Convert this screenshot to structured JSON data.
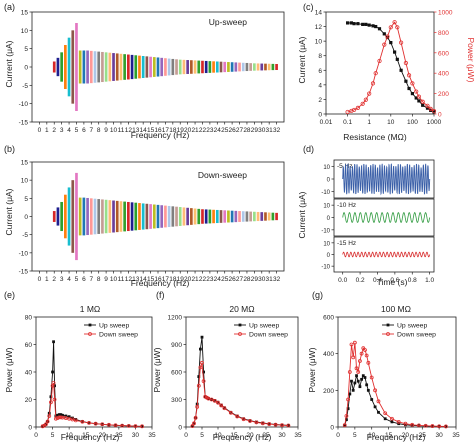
{
  "colors": {
    "axis": "#222222",
    "power_red": "#e03030",
    "current_black": "#111111",
    "up_sweep": "#111111",
    "down_sweep": "#e03030",
    "wave_blue": "#3a5fa8",
    "wave_green": "#2e9a3e",
    "wave_red": "#d83030"
  },
  "chart_data": [
    {
      "id": "a",
      "type": "bar",
      "panel_label": "(a)",
      "annotation": "Up-sweep",
      "xlabel": "Frequency (Hz)",
      "ylabel": "Current (μA)",
      "xlim": [
        -1,
        33
      ],
      "ylim": [
        -15,
        15
      ],
      "xticks": [
        "0",
        "1",
        "2",
        "3",
        "4",
        "5",
        "6",
        "7",
        "8",
        "9",
        "10",
        "11",
        "12",
        "13",
        "14",
        "15",
        "16",
        "17",
        "18",
        "19",
        "20",
        "21",
        "22",
        "23",
        "24",
        "25",
        "26",
        "27",
        "28",
        "29",
        "30",
        "31",
        "32"
      ],
      "yticks": [
        "-15",
        "-10",
        "-5",
        "0",
        "5",
        "10",
        "15"
      ],
      "series": [
        {
          "x": [
            2,
            2.5,
            3,
            3.5,
            4,
            4.5,
            5,
            5.5,
            6,
            6.5,
            7,
            7.5,
            8,
            8.5,
            9,
            9.5,
            10,
            10.5,
            11,
            11.5,
            12,
            12.5,
            13,
            13.5,
            14,
            14.5,
            15,
            15.5,
            16,
            16.5,
            17,
            17.5,
            18,
            18.5,
            19,
            19.5,
            20,
            20.5,
            21,
            21.5,
            22,
            22.5,
            23,
            23.5,
            24,
            24.5,
            25,
            25.5,
            26,
            26.5,
            27,
            27.5,
            28,
            28.5,
            29,
            29.5,
            30,
            30.5,
            31,
            31.5,
            32
          ],
          "values": [
            1.5,
            2.5,
            4,
            6,
            8,
            10,
            12,
            4.5,
            4.5,
            4.5,
            4.4,
            4.3,
            4.2,
            4.1,
            4.0,
            3.9,
            3.8,
            3.7,
            3.6,
            3.5,
            3.4,
            3.3,
            3.2,
            3.1,
            3.0,
            2.9,
            2.8,
            2.7,
            2.6,
            2.5,
            2.4,
            2.3,
            2.2,
            2.1,
            2.0,
            1.95,
            1.9,
            1.85,
            1.8,
            1.75,
            1.7,
            1.65,
            1.6,
            1.55,
            1.5,
            1.45,
            1.4,
            1.35,
            1.3,
            1.25,
            1.2,
            1.15,
            1.1,
            1.05,
            1.0,
            0.97,
            0.94,
            0.91,
            0.88,
            0.85,
            0.82
          ]
        }
      ]
    },
    {
      "id": "b",
      "type": "bar",
      "panel_label": "(b)",
      "annotation": "Down-sweep",
      "xlabel": "Frequency (Hz)",
      "ylabel": "Current (μA)",
      "xlim": [
        -1,
        33
      ],
      "ylim": [
        -15,
        15
      ],
      "xticks": [
        "0",
        "1",
        "2",
        "3",
        "4",
        "5",
        "6",
        "7",
        "8",
        "9",
        "10",
        "11",
        "12",
        "13",
        "14",
        "15",
        "16",
        "17",
        "18",
        "19",
        "20",
        "21",
        "22",
        "23",
        "24",
        "25",
        "26",
        "27",
        "28",
        "29",
        "30",
        "31",
        "32"
      ],
      "yticks": [
        "-15",
        "-10",
        "-5",
        "0",
        "5",
        "10",
        "15"
      ],
      "series": [
        {
          "x": [
            2,
            2.5,
            3,
            3.5,
            4,
            4.5,
            5,
            5.5,
            6,
            6.5,
            7,
            7.5,
            8,
            8.5,
            9,
            9.5,
            10,
            10.5,
            11,
            11.5,
            12,
            12.5,
            13,
            13.5,
            14,
            14.5,
            15,
            15.5,
            16,
            16.5,
            17,
            17.5,
            18,
            18.5,
            19,
            19.5,
            20,
            20.5,
            21,
            21.5,
            22,
            22.5,
            23,
            23.5,
            24,
            24.5,
            25,
            25.5,
            26,
            26.5,
            27,
            27.5,
            28,
            28.5,
            29,
            29.5,
            30,
            30.5,
            31,
            31.5,
            32
          ],
          "values": [
            1.5,
            2.5,
            4,
            6,
            8,
            10,
            12,
            5.2,
            5.2,
            5.1,
            5.0,
            4.9,
            4.8,
            4.7,
            4.6,
            4.5,
            4.4,
            4.3,
            4.2,
            4.1,
            4.0,
            3.9,
            3.8,
            3.7,
            3.6,
            3.5,
            3.4,
            3.3,
            3.2,
            3.1,
            3.0,
            2.9,
            2.8,
            2.7,
            2.6,
            2.5,
            2.4,
            2.3,
            2.2,
            2.1,
            2.0,
            1.95,
            1.9,
            1.85,
            1.8,
            1.75,
            1.7,
            1.65,
            1.6,
            1.55,
            1.5,
            1.45,
            1.4,
            1.35,
            1.3,
            1.25,
            1.2,
            1.15,
            1.1,
            1.05,
            1.0
          ]
        }
      ]
    },
    {
      "id": "c",
      "type": "line",
      "panel_label": "(c)",
      "xlabel": "Resistance (MΩ)",
      "ylabel": "Current (μA)",
      "ylabel_right": "Power (μW)",
      "xscale": "log",
      "xlim": [
        0.01,
        1000
      ],
      "ylim": [
        0,
        14
      ],
      "ylim_right": [
        0,
        1000
      ],
      "xticks": [
        "0.01",
        "0.1",
        "1",
        "10",
        "100",
        "1000"
      ],
      "yticks": [
        "0",
        "2",
        "4",
        "6",
        "8",
        "10",
        "12",
        "14"
      ],
      "yticks_right": [
        "0",
        "200",
        "400",
        "600",
        "800",
        "1000"
      ],
      "series": [
        {
          "name": "Current",
          "axis": "left",
          "marker": "square",
          "x": [
            0.1,
            0.15,
            0.2,
            0.3,
            0.5,
            0.7,
            1,
            1.5,
            2,
            3,
            5,
            7,
            10,
            15,
            20,
            30,
            50,
            70,
            100,
            150,
            200,
            300,
            500,
            700,
            1000
          ],
          "values": [
            12.5,
            12.5,
            12.4,
            12.4,
            12.3,
            12.3,
            12.2,
            12.1,
            12.0,
            11.7,
            11.0,
            10.5,
            9.8,
            8.5,
            7.5,
            6.0,
            4.5,
            3.5,
            2.8,
            2.2,
            1.8,
            1.2,
            0.8,
            0.5,
            0.3
          ]
        },
        {
          "name": "Power",
          "axis": "right",
          "marker": "circle",
          "x": [
            0.1,
            0.15,
            0.2,
            0.3,
            0.5,
            0.7,
            1,
            1.5,
            2,
            3,
            5,
            7,
            10,
            15,
            20,
            30,
            50,
            70,
            100,
            150,
            200,
            300,
            500,
            700,
            1000
          ],
          "values": [
            20,
            30,
            40,
            60,
            100,
            140,
            200,
            300,
            400,
            520,
            680,
            760,
            850,
            900,
            850,
            700,
            500,
            380,
            300,
            220,
            170,
            120,
            80,
            50,
            30
          ]
        }
      ]
    },
    {
      "id": "d",
      "type": "line",
      "panel_label": "(d)",
      "xlabel": "Time (s)",
      "ylabel": "Current (μA)",
      "xlim": [
        -0.1,
        1.05
      ],
      "xticks": [
        "0.0",
        "0.2",
        "0.4",
        "0.6",
        "0.8",
        "1.0"
      ],
      "subplots": [
        {
          "label": "5 Hz",
          "yticks": [
            "10",
            "0",
            "-10"
          ],
          "ylim": [
            -15,
            15
          ],
          "frequency": 5,
          "amplitude": 12,
          "pattern": "burst"
        },
        {
          "label": "10 Hz",
          "yticks": [
            "10",
            "0",
            "-10"
          ],
          "ylim": [
            -15,
            15
          ],
          "frequency": 10,
          "amplitude": 4,
          "pattern": "sine"
        },
        {
          "label": "15 Hz",
          "yticks": [
            "10",
            "0",
            "-10"
          ],
          "ylim": [
            -15,
            15
          ],
          "frequency": 15,
          "amplitude": 2,
          "pattern": "sine"
        }
      ]
    },
    {
      "id": "e",
      "type": "line",
      "panel_label": "(e)",
      "title": "1 MΩ",
      "xlabel": "Frequency (Hz)",
      "ylabel": "Power (μW)",
      "xlim": [
        0,
        35
      ],
      "ylim": [
        0,
        80
      ],
      "xticks": [
        "0",
        "5",
        "10",
        "15",
        "20",
        "25",
        "30",
        "35"
      ],
      "yticks": [
        "0",
        "20",
        "40",
        "60",
        "80"
      ],
      "legend": [
        "Up sweep",
        "Down sweep"
      ],
      "series": [
        {
          "name": "Up sweep",
          "marker": "square",
          "x": [
            2,
            2.5,
            3,
            3.5,
            4,
            4.5,
            5,
            5.3,
            5.6,
            6,
            6.5,
            7,
            7.5,
            8,
            9,
            10,
            11,
            12,
            14,
            16,
            18,
            20,
            22,
            24,
            26,
            28,
            30,
            32
          ],
          "values": [
            0.5,
            1,
            2,
            4,
            10,
            22,
            40,
            62,
            30,
            8,
            8.5,
            9,
            9,
            8.5,
            8,
            7.5,
            6.5,
            5.5,
            4,
            3,
            2.5,
            2,
            1.5,
            1.2,
            1,
            0.8,
            0.6,
            0.5
          ]
        },
        {
          "name": "Down sweep",
          "marker": "circle",
          "x": [
            2,
            2.5,
            3,
            3.5,
            4,
            4.5,
            5,
            5.3,
            5.6,
            6,
            6.5,
            7,
            7.5,
            8,
            9,
            10,
            11,
            12,
            14,
            16,
            18,
            20,
            22,
            24,
            26,
            28,
            30,
            32
          ],
          "values": [
            0.5,
            1,
            2,
            4,
            8,
            18,
            30,
            32,
            20,
            6,
            6.5,
            7,
            7,
            6.8,
            6.5,
            6,
            5.5,
            4.8,
            3.8,
            3,
            2.4,
            2,
            1.6,
            1.3,
            1,
            0.8,
            0.6,
            0.5
          ]
        }
      ]
    },
    {
      "id": "f",
      "type": "line",
      "panel_label": "(f)",
      "title": "20 MΩ",
      "xlabel": "Frequency (Hz)",
      "ylabel": "Power (μW)",
      "xlim": [
        0,
        35
      ],
      "ylim": [
        0,
        1200
      ],
      "xticks": [
        "0",
        "5",
        "10",
        "15",
        "20",
        "25",
        "30",
        "35"
      ],
      "yticks": [
        "0",
        "300",
        "600",
        "900",
        "1200"
      ],
      "legend": [
        "Up sweep",
        "Down sweep"
      ],
      "series": [
        {
          "name": "Up sweep",
          "marker": "square",
          "x": [
            2,
            2.5,
            3,
            3.5,
            4,
            4.5,
            5,
            5.5,
            6,
            6.5,
            7,
            8,
            9,
            10,
            11,
            12,
            14,
            16,
            18,
            20,
            22,
            24,
            26,
            28,
            30,
            32
          ],
          "values": [
            10,
            40,
            100,
            250,
            550,
            850,
            980,
            600,
            330,
            320,
            310,
            300,
            290,
            270,
            240,
            210,
            160,
            120,
            90,
            70,
            55,
            45,
            35,
            28,
            22,
            18
          ]
        },
        {
          "name": "Down sweep",
          "marker": "circle",
          "x": [
            2,
            2.5,
            3,
            3.5,
            4,
            4.5,
            5,
            5.5,
            6,
            6.5,
            7,
            8,
            9,
            10,
            11,
            12,
            14,
            16,
            18,
            20,
            22,
            24,
            26,
            28,
            30,
            32
          ],
          "values": [
            10,
            40,
            100,
            220,
            450,
            650,
            700,
            500,
            330,
            320,
            310,
            300,
            285,
            265,
            235,
            205,
            155,
            115,
            85,
            65,
            50,
            40,
            32,
            25,
            20,
            16
          ]
        }
      ]
    },
    {
      "id": "g",
      "type": "line",
      "panel_label": "(g)",
      "title": "100 MΩ",
      "xlabel": "Frequency (Hz)",
      "ylabel": "Power (μW)",
      "xlim": [
        0,
        35
      ],
      "ylim": [
        0,
        600
      ],
      "xticks": [
        "0",
        "5",
        "10",
        "15",
        "20",
        "25",
        "30",
        "35"
      ],
      "yticks": [
        "0",
        "200",
        "400",
        "600"
      ],
      "legend": [
        "Up sweep",
        "Down sweep"
      ],
      "series": [
        {
          "name": "Up sweep",
          "marker": "square",
          "x": [
            2,
            2.5,
            3,
            3.5,
            4,
            4.5,
            5,
            5.5,
            6,
            6.5,
            7,
            7.5,
            8,
            8.5,
            9,
            10,
            11,
            12,
            14,
            16,
            18,
            20,
            22,
            24,
            26,
            28,
            30,
            32
          ],
          "values": [
            10,
            40,
            100,
            180,
            250,
            200,
            240,
            280,
            250,
            220,
            260,
            280,
            270,
            230,
            200,
            150,
            110,
            80,
            45,
            28,
            18,
            12,
            9,
            7,
            5,
            4,
            3,
            2
          ]
        },
        {
          "name": "Down sweep",
          "marker": "circle",
          "x": [
            2,
            2.5,
            3,
            3.5,
            4,
            4.5,
            5,
            5.5,
            6,
            6.5,
            7,
            7.5,
            8,
            8.5,
            9,
            10,
            11,
            12,
            14,
            16,
            18,
            20,
            22,
            24,
            26,
            28,
            30,
            32
          ],
          "values": [
            10,
            60,
            150,
            300,
            450,
            380,
            460,
            320,
            300,
            360,
            400,
            430,
            420,
            390,
            350,
            270,
            200,
            140,
            75,
            45,
            28,
            18,
            12,
            9,
            7,
            5,
            4,
            3
          ]
        }
      ]
    }
  ]
}
